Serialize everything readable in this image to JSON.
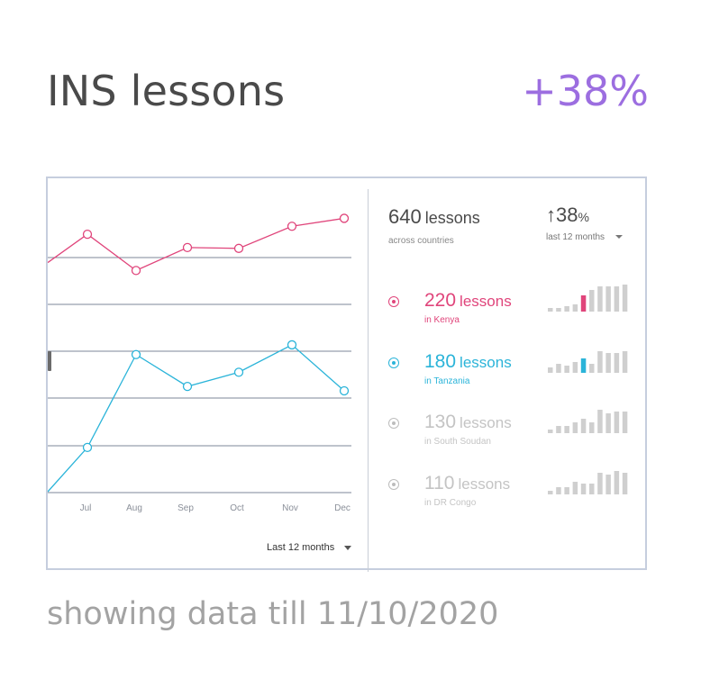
{
  "header": {
    "title": "INS lessons",
    "delta": "+38%"
  },
  "footer": {
    "note": "showing data till 11/10/2020"
  },
  "chart_data": {
    "type": "line",
    "categories": [
      "Jul",
      "Aug",
      "Sep",
      "Oct",
      "Nov",
      "Dec"
    ],
    "series": [
      {
        "color": "#e0457b",
        "values": [
          90,
          49,
          75,
          74,
          99,
          108
        ]
      },
      {
        "color": "#2bb4d9",
        "values": [
          -151,
          -46,
          -82,
          -66,
          -35,
          -87
        ]
      }
    ],
    "ylim": [
      -203,
      141
    ],
    "grid": true,
    "legend": "none"
  },
  "chart_controls": {
    "range_label": "Last 12 months"
  },
  "summary": {
    "total": "640",
    "total_unit": "lessons",
    "total_sub": "across countries",
    "growth_arrow": "↑",
    "growth_value": "38",
    "growth_pct": "%",
    "period_label": "last 12 months"
  },
  "countries": [
    {
      "value": "220",
      "unit": "lessons",
      "place": "in Kenya",
      "color": "#e0457b",
      "text_color": "#e0457b",
      "place_color": "#e0457b",
      "bars": [
        2,
        2,
        3,
        4,
        9,
        12,
        14,
        14,
        14,
        15
      ],
      "highlight": 4
    },
    {
      "value": "180",
      "unit": "lessons",
      "place": "in Tanzania",
      "color": "#2bb4d9",
      "text_color": "#2bb4d9",
      "place_color": "#2bb4d9",
      "bars": [
        3,
        5,
        4,
        6,
        8,
        5,
        12,
        11,
        11,
        12
      ],
      "highlight": 4
    },
    {
      "value": "130",
      "unit": "lessons",
      "place": "in South Soudan",
      "color": "#bdbdbd",
      "text_color": "#c4c4c4",
      "place_color": "#c4c4c4",
      "bars": [
        2,
        4,
        4,
        6,
        8,
        6,
        13,
        11,
        12,
        12
      ],
      "highlight": -1
    },
    {
      "value": "110",
      "unit": "lessons",
      "place": "in DR Congo",
      "color": "#bdbdbd",
      "text_color": "#c4c4c4",
      "place_color": "#c4c4c4",
      "bars": [
        2,
        4,
        4,
        7,
        6,
        6,
        12,
        11,
        13,
        12
      ],
      "highlight": -1
    }
  ]
}
